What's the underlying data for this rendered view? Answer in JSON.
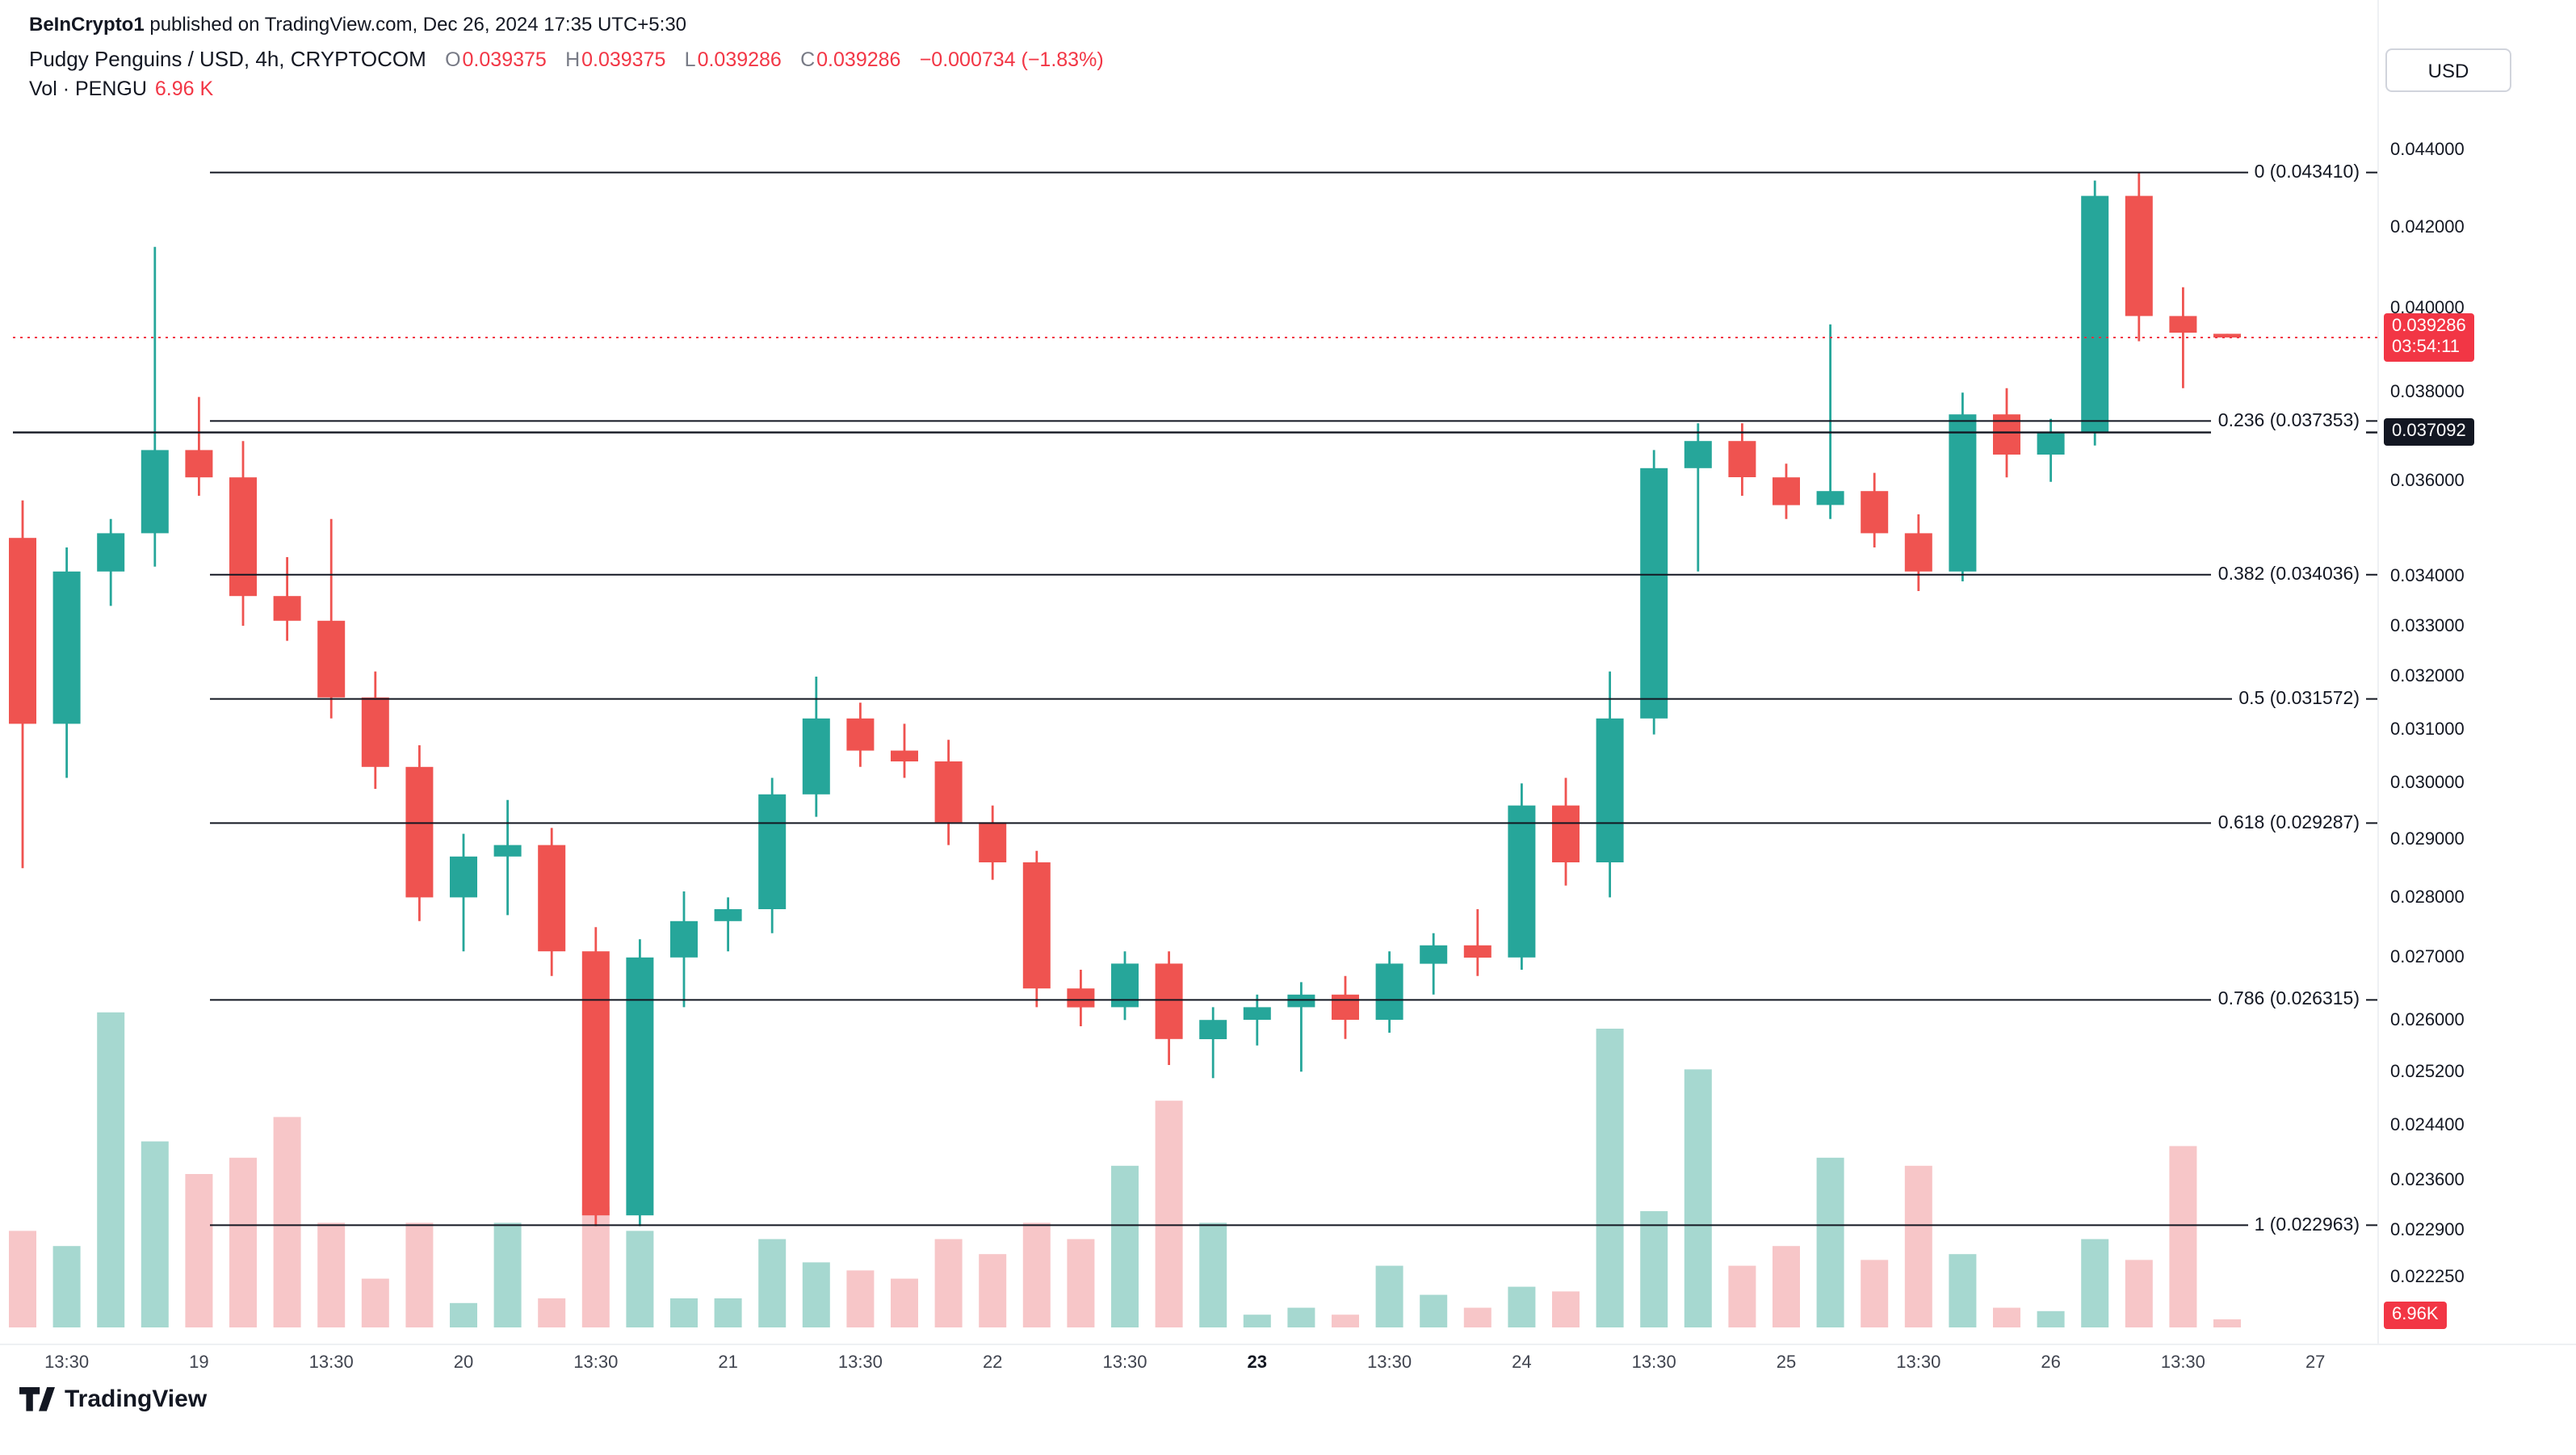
{
  "attribution": {
    "author": "BeInCrypto1",
    "rest": " published on TradingView.com, Dec 26, 2024 17:35 UTC+5:30"
  },
  "legend": {
    "title": "Pudgy Penguins / USD, 4h, CRYPTOCOM",
    "ohlc": [
      {
        "label": "O",
        "value": "0.039375"
      },
      {
        "label": "H",
        "value": "0.039375"
      },
      {
        "label": "L",
        "value": "0.039286"
      },
      {
        "label": "C",
        "value": "0.039286"
      }
    ],
    "change": "−0.000734 (−1.83%)",
    "volume_label": "Vol · PENGU",
    "volume_value": "6.96 K"
  },
  "price_axis": {
    "currency": "USD",
    "last_badge": {
      "price": "0.039286",
      "countdown": "03:54:11"
    },
    "line_badge": "0.037092",
    "volume_badge": "6.96K"
  },
  "footer": {
    "brand": "TradingView"
  },
  "colors": {
    "up": "#26a69a",
    "down": "#ef5350",
    "vol_up": "#a6d8d0",
    "vol_down": "#f7c6c8",
    "accent_red": "#f23645",
    "line_black": "#131722"
  },
  "chart_data": {
    "type": "candlestick",
    "title": "Pudgy Penguins / USD, 4h, CRYPTOCOM",
    "symbol": "PENGU/USD",
    "exchange": "CRYPTOCOM",
    "interval": "4h",
    "scale": "log",
    "y_range": [
      0.0215,
      0.0448
    ],
    "last_price": 0.039286,
    "horizontal_line_price": 0.037092,
    "fib_levels": [
      {
        "label": "0 (0.043410)",
        "price": 0.04341
      },
      {
        "label": "0.236 (0.037353)",
        "price": 0.037353
      },
      {
        "label": "0.382 (0.034036)",
        "price": 0.034036
      },
      {
        "label": "0.5 (0.031572)",
        "price": 0.031572
      },
      {
        "label": "0.618 (0.029287)",
        "price": 0.029287
      },
      {
        "label": "0.786 (0.026315)",
        "price": 0.026315
      },
      {
        "label": "1 (0.022963)",
        "price": 0.022963
      }
    ],
    "y_axis_labels": [
      "0.044000",
      "0.042000",
      "0.040000",
      "0.038000",
      "0.036000",
      "0.034000",
      "0.033000",
      "0.032000",
      "0.031000",
      "0.030000",
      "0.029000",
      "0.028000",
      "0.027000",
      "0.026000",
      "0.025200",
      "0.024400",
      "0.023600",
      "0.022900",
      "0.022250"
    ],
    "x_axis_labels": [
      {
        "i": 1,
        "label": "13:30",
        "bold": false
      },
      {
        "i": 4,
        "label": "19",
        "bold": false
      },
      {
        "i": 7,
        "label": "13:30",
        "bold": false
      },
      {
        "i": 10,
        "label": "20",
        "bold": false
      },
      {
        "i": 13,
        "label": "13:30",
        "bold": false
      },
      {
        "i": 16,
        "label": "21",
        "bold": false
      },
      {
        "i": 19,
        "label": "13:30",
        "bold": false
      },
      {
        "i": 22,
        "label": "22",
        "bold": false
      },
      {
        "i": 25,
        "label": "13:30",
        "bold": false
      },
      {
        "i": 28,
        "label": "23",
        "bold": true
      },
      {
        "i": 31,
        "label": "13:30",
        "bold": false
      },
      {
        "i": 34,
        "label": "24",
        "bold": false
      },
      {
        "i": 37,
        "label": "13:30",
        "bold": false
      },
      {
        "i": 40,
        "label": "25",
        "bold": false
      },
      {
        "i": 43,
        "label": "13:30",
        "bold": false
      },
      {
        "i": 46,
        "label": "26",
        "bold": false
      },
      {
        "i": 49,
        "label": "13:30",
        "bold": false
      },
      {
        "i": 52,
        "label": "27",
        "bold": false
      }
    ],
    "columns": [
      "open",
      "high",
      "low",
      "close",
      "volume_k_est"
    ],
    "candles": [
      [
        0.0348,
        0.0356,
        0.0285,
        0.0311,
        83
      ],
      [
        0.0311,
        0.0346,
        0.0301,
        0.0341,
        70
      ],
      [
        0.0341,
        0.0352,
        0.0334,
        0.0349,
        271
      ],
      [
        0.0349,
        0.0415,
        0.0342,
        0.0367,
        160
      ],
      [
        0.0367,
        0.0379,
        0.0357,
        0.0361,
        132
      ],
      [
        0.0361,
        0.0369,
        0.033,
        0.0336,
        146
      ],
      [
        0.0336,
        0.0344,
        0.0327,
        0.0331,
        181
      ],
      [
        0.0331,
        0.0352,
        0.0312,
        0.0316,
        90
      ],
      [
        0.0316,
        0.0321,
        0.0299,
        0.0303,
        42
      ],
      [
        0.0303,
        0.0307,
        0.0276,
        0.028,
        90
      ],
      [
        0.028,
        0.0291,
        0.0271,
        0.0287,
        21
      ],
      [
        0.0287,
        0.0297,
        0.0277,
        0.0289,
        90
      ],
      [
        0.0289,
        0.0292,
        0.0267,
        0.0271,
        25
      ],
      [
        0.0271,
        0.0275,
        0.02295,
        0.0231,
        104
      ],
      [
        0.0231,
        0.0273,
        0.02295,
        0.027,
        83
      ],
      [
        0.027,
        0.0281,
        0.0262,
        0.0276,
        25
      ],
      [
        0.0276,
        0.028,
        0.0271,
        0.0278,
        25
      ],
      [
        0.0278,
        0.0301,
        0.0274,
        0.0298,
        76
      ],
      [
        0.0298,
        0.032,
        0.0294,
        0.0312,
        56
      ],
      [
        0.0312,
        0.0315,
        0.0303,
        0.0306,
        49
      ],
      [
        0.0306,
        0.0311,
        0.0301,
        0.0304,
        42
      ],
      [
        0.0304,
        0.0308,
        0.0289,
        0.0293,
        76
      ],
      [
        0.0293,
        0.0296,
        0.0283,
        0.0286,
        63
      ],
      [
        0.0286,
        0.0288,
        0.0262,
        0.0265,
        90
      ],
      [
        0.0265,
        0.0268,
        0.0259,
        0.0262,
        76
      ],
      [
        0.0262,
        0.0271,
        0.026,
        0.0269,
        139
      ],
      [
        0.0269,
        0.0271,
        0.0253,
        0.0257,
        195
      ],
      [
        0.0257,
        0.0262,
        0.0251,
        0.026,
        90
      ],
      [
        0.026,
        0.0264,
        0.0256,
        0.0262,
        11
      ],
      [
        0.0262,
        0.0266,
        0.0252,
        0.0264,
        17
      ],
      [
        0.0264,
        0.0267,
        0.0257,
        0.026,
        11
      ],
      [
        0.026,
        0.0271,
        0.0258,
        0.0269,
        53
      ],
      [
        0.0269,
        0.0274,
        0.0264,
        0.0272,
        28
      ],
      [
        0.0272,
        0.0278,
        0.0267,
        0.027,
        17
      ],
      [
        0.027,
        0.03,
        0.0268,
        0.0296,
        35
      ],
      [
        0.0296,
        0.0301,
        0.0282,
        0.0286,
        31
      ],
      [
        0.0286,
        0.0321,
        0.028,
        0.0312,
        257
      ],
      [
        0.0312,
        0.0367,
        0.0309,
        0.0363,
        100
      ],
      [
        0.0363,
        0.0373,
        0.0341,
        0.0369,
        222
      ],
      [
        0.0369,
        0.0373,
        0.0357,
        0.0361,
        53
      ],
      [
        0.0361,
        0.0364,
        0.0352,
        0.0355,
        70
      ],
      [
        0.0355,
        0.0396,
        0.0352,
        0.0358,
        146
      ],
      [
        0.0358,
        0.0362,
        0.0346,
        0.0349,
        58
      ],
      [
        0.0349,
        0.0353,
        0.0337,
        0.0341,
        139
      ],
      [
        0.0341,
        0.038,
        0.0339,
        0.0375,
        63
      ],
      [
        0.0375,
        0.0381,
        0.0361,
        0.0366,
        17
      ],
      [
        0.0366,
        0.0374,
        0.036,
        0.0371,
        14
      ],
      [
        0.0371,
        0.0432,
        0.0368,
        0.0428,
        76
      ],
      [
        0.0428,
        0.04341,
        0.0392,
        0.0398,
        58
      ],
      [
        0.0398,
        0.0405,
        0.0381,
        0.0394,
        156
      ],
      [
        0.039375,
        0.039375,
        0.039286,
        0.039286,
        6.96
      ]
    ]
  }
}
